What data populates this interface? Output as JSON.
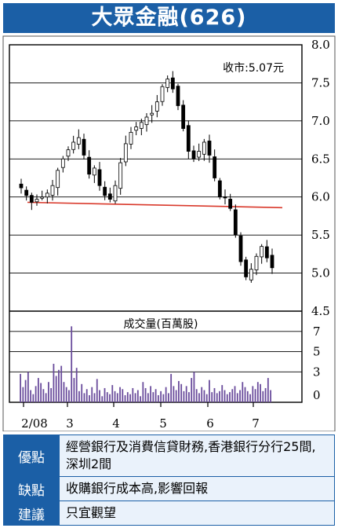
{
  "title": "大眾金融(626)",
  "colors": {
    "accent": "#1b5fa6",
    "support_line": "#d9392b",
    "panel_bg": "#eaf2fb"
  },
  "chart_data": {
    "type": "candlestick",
    "price_panel": {
      "ylim": [
        4.5,
        8.0
      ],
      "y_ticks": [
        "8.0",
        "7.5",
        "7.0",
        "6.5",
        "6.0",
        "5.5",
        "5.0",
        "4.5"
      ],
      "annotation": "收市:5.07元",
      "trend_line": {
        "from": [
          "2/08",
          5.93
        ],
        "to": [
          "7/08 end",
          5.86
        ]
      },
      "close_path": [
        [
          "2/08",
          6.12
        ],
        [
          "2/08",
          6.02
        ],
        [
          "2/08",
          5.93
        ],
        [
          "2/08",
          5.97
        ],
        [
          "2/08",
          6.0
        ],
        [
          "2 mid",
          6.05
        ],
        [
          "2 mid",
          6.15
        ],
        [
          "2 late",
          6.35
        ],
        [
          "2 late",
          6.5
        ],
        [
          "2 late",
          6.62
        ],
        [
          "3 early",
          6.72
        ],
        [
          "3 early",
          6.78
        ],
        [
          "3 early",
          6.55
        ],
        [
          "3 mid",
          6.3
        ],
        [
          "3 mid",
          6.38
        ],
        [
          "3 late",
          6.15
        ],
        [
          "3 late",
          6.02
        ],
        [
          "3 late",
          5.97
        ],
        [
          "4 early",
          6.15
        ],
        [
          "4 early",
          6.45
        ],
        [
          "4 mid",
          6.7
        ],
        [
          "4 mid",
          6.85
        ],
        [
          "4 mid",
          6.92
        ],
        [
          "4 late",
          6.98
        ],
        [
          "4 late",
          7.05
        ],
        [
          "4 late",
          7.1
        ],
        [
          "5 early",
          7.25
        ],
        [
          "5 early",
          7.45
        ],
        [
          "5 early",
          7.55
        ],
        [
          "5 mid",
          7.42
        ],
        [
          "5 mid",
          7.2
        ],
        [
          "5 late",
          6.9
        ],
        [
          "5 late",
          6.6
        ],
        [
          "5 late",
          6.5
        ],
        [
          "6 early",
          6.6
        ],
        [
          "6 early",
          6.72
        ],
        [
          "6 mid",
          6.55
        ],
        [
          "6 mid",
          6.25
        ],
        [
          "6 late",
          6.0
        ],
        [
          "6 late",
          6.0
        ],
        [
          "7 early",
          5.85
        ],
        [
          "7 early",
          5.5
        ],
        [
          "7 early",
          5.15
        ],
        [
          "7 mid",
          4.95
        ],
        [
          "7 mid",
          5.05
        ],
        [
          "7 mid",
          5.22
        ],
        [
          "7 late",
          5.35
        ],
        [
          "7 late",
          5.2
        ],
        [
          "7 late",
          5.07
        ]
      ]
    },
    "volume_panel": {
      "title": "成交量(百萬股)",
      "ylim": [
        0,
        9
      ],
      "y_ticks": [
        "7",
        "5",
        "3",
        "0"
      ],
      "values": [
        2.8,
        1.5,
        2.2,
        3.0,
        1.2,
        0.8,
        1.6,
        2.4,
        1.9,
        1.3,
        0.9,
        2.0,
        1.4,
        3.8,
        2.6,
        3.2,
        3.6,
        2.0,
        1.5,
        1.2,
        7.5,
        2.4,
        3.4,
        1.1,
        1.8,
        0.9,
        1.3,
        0.7,
        1.5,
        0.9,
        2.3,
        1.2,
        0.6,
        1.4,
        1.0,
        0.8,
        1.7,
        1.1,
        0.9,
        1.5,
        1.3,
        0.7,
        1.0,
        0.8,
        1.4,
        0.9,
        1.2,
        0.6,
        2.0,
        1.4,
        0.9,
        1.6,
        1.0,
        1.3,
        0.7,
        1.1,
        0.8,
        1.5,
        0.9,
        2.8,
        1.6,
        1.2,
        2.1,
        1.8,
        1.1,
        1.6,
        1.0,
        2.4,
        3.0,
        1.3,
        0.9,
        1.5,
        1.2,
        0.8,
        2.2,
        1.0,
        1.4,
        0.9,
        1.1,
        1.7,
        1.2,
        0.8,
        1.0,
        1.3,
        1.6,
        0.9,
        1.2,
        2.0,
        1.5,
        1.1,
        0.8,
        1.6,
        1.3,
        2.0,
        1.8,
        1.1,
        1.4,
        2.4,
        1.2
      ]
    },
    "x_ticks": [
      "2/08",
      "3",
      "4",
      "5",
      "6",
      "7"
    ]
  },
  "info": [
    {
      "label": "優點",
      "text": "經營銀行及消費信貸財務,香港銀行分行25間,深圳2間"
    },
    {
      "label": "缺點",
      "text": "收購銀行成本高,影響回報"
    },
    {
      "label": "建議",
      "text": "只宜觀望"
    }
  ]
}
